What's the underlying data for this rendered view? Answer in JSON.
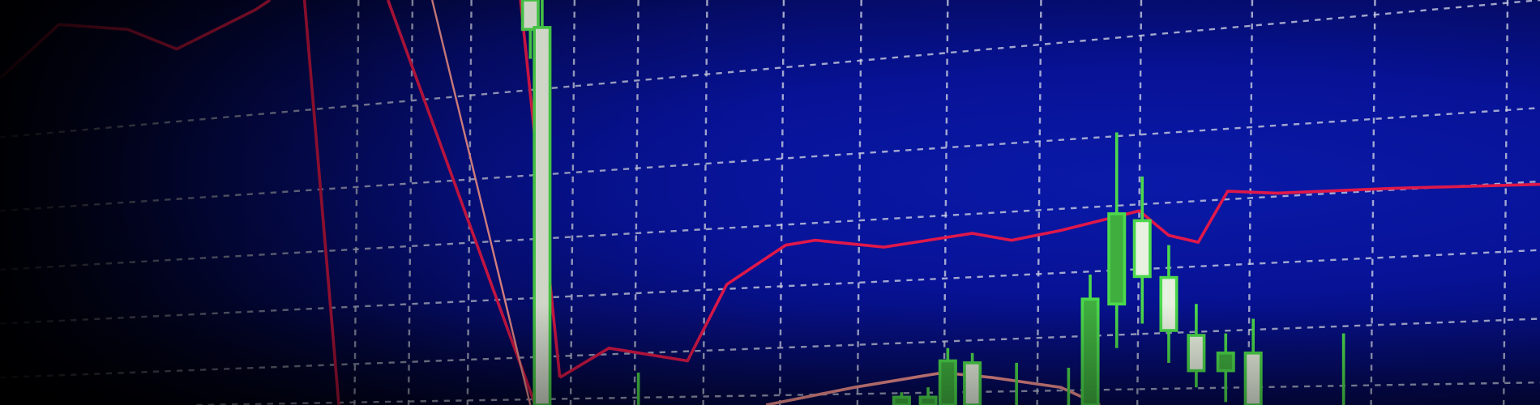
{
  "scene": {
    "description_colors": {
      "background": "#0a1aa8",
      "grid": "#c8cce0",
      "moving_average": "#e0184a",
      "secondary_line": "#f09090",
      "candle_outline": "#4cd84c",
      "candle_body_up": "#e8f0e0",
      "candle_body_down": "#3fae3f"
    }
  }
}
